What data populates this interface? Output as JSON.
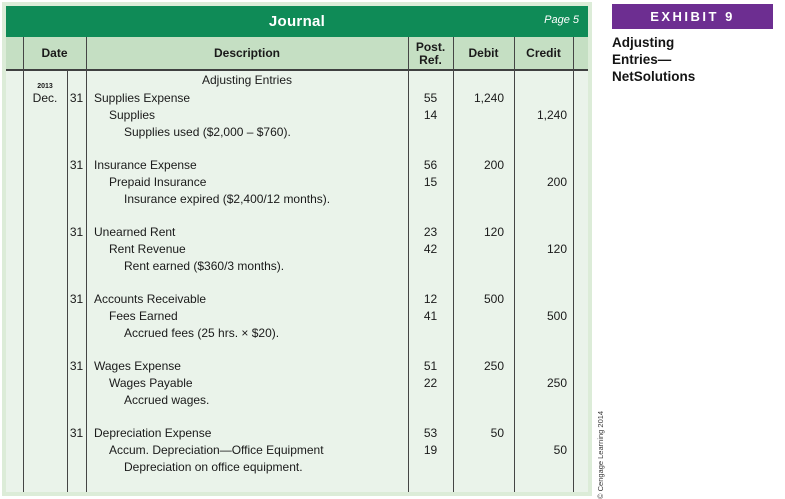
{
  "exhibit": {
    "tag": "EXHIBIT 9",
    "caption_lines": [
      "Adjusting",
      "Entries—",
      "NetSolutions"
    ]
  },
  "journal": {
    "title": "Journal",
    "page_label": "Page 5",
    "column_headers": {
      "date": "Date",
      "description": "Description",
      "post_ref_line1": "Post.",
      "post_ref_line2": "Ref.",
      "debit": "Debit",
      "credit": "Credit"
    },
    "section_heading": "Adjusting Entries",
    "date_year": "2013",
    "date_month": "Dec.",
    "entries": [
      {
        "day": "31",
        "debit_account": "Supplies Expense",
        "debit_ref": "55",
        "debit_amount": "1,240",
        "credit_account": "Supplies",
        "credit_ref": "14",
        "credit_amount": "1,240",
        "explanation": "Supplies used ($2,000 – $760)."
      },
      {
        "day": "31",
        "debit_account": "Insurance Expense",
        "debit_ref": "56",
        "debit_amount": "200",
        "credit_account": "Prepaid Insurance",
        "credit_ref": "15",
        "credit_amount": "200",
        "explanation": "Insurance expired ($2,400/12 months)."
      },
      {
        "day": "31",
        "debit_account": "Unearned Rent",
        "debit_ref": "23",
        "debit_amount": "120",
        "credit_account": "Rent Revenue",
        "credit_ref": "42",
        "credit_amount": "120",
        "explanation": "Rent earned ($360/3 months)."
      },
      {
        "day": "31",
        "debit_account": "Accounts Receivable",
        "debit_ref": "12",
        "debit_amount": "500",
        "credit_account": "Fees Earned",
        "credit_ref": "41",
        "credit_amount": "500",
        "explanation": "Accrued fees (25 hrs. × $20)."
      },
      {
        "day": "31",
        "debit_account": "Wages Expense",
        "debit_ref": "51",
        "debit_amount": "250",
        "credit_account": "Wages Payable",
        "credit_ref": "22",
        "credit_amount": "250",
        "explanation": "Accrued wages."
      },
      {
        "day": "31",
        "debit_account": "Depreciation Expense",
        "debit_ref": "53",
        "debit_amount": "50",
        "credit_account": "Accum. Depreciation—Office Equipment",
        "credit_ref": "19",
        "credit_amount": "50",
        "explanation": "Depreciation on office equipment."
      }
    ]
  },
  "copyright": "© Cengage Learning 2014",
  "colors": {
    "title_bar_green": "#0f8b57",
    "column_header_green": "#c5dfc3",
    "body_green": "#eaf3ea",
    "frame_green": "#dcecd8",
    "exhibit_purple": "#6d2e91",
    "grid_line": "#454545"
  }
}
